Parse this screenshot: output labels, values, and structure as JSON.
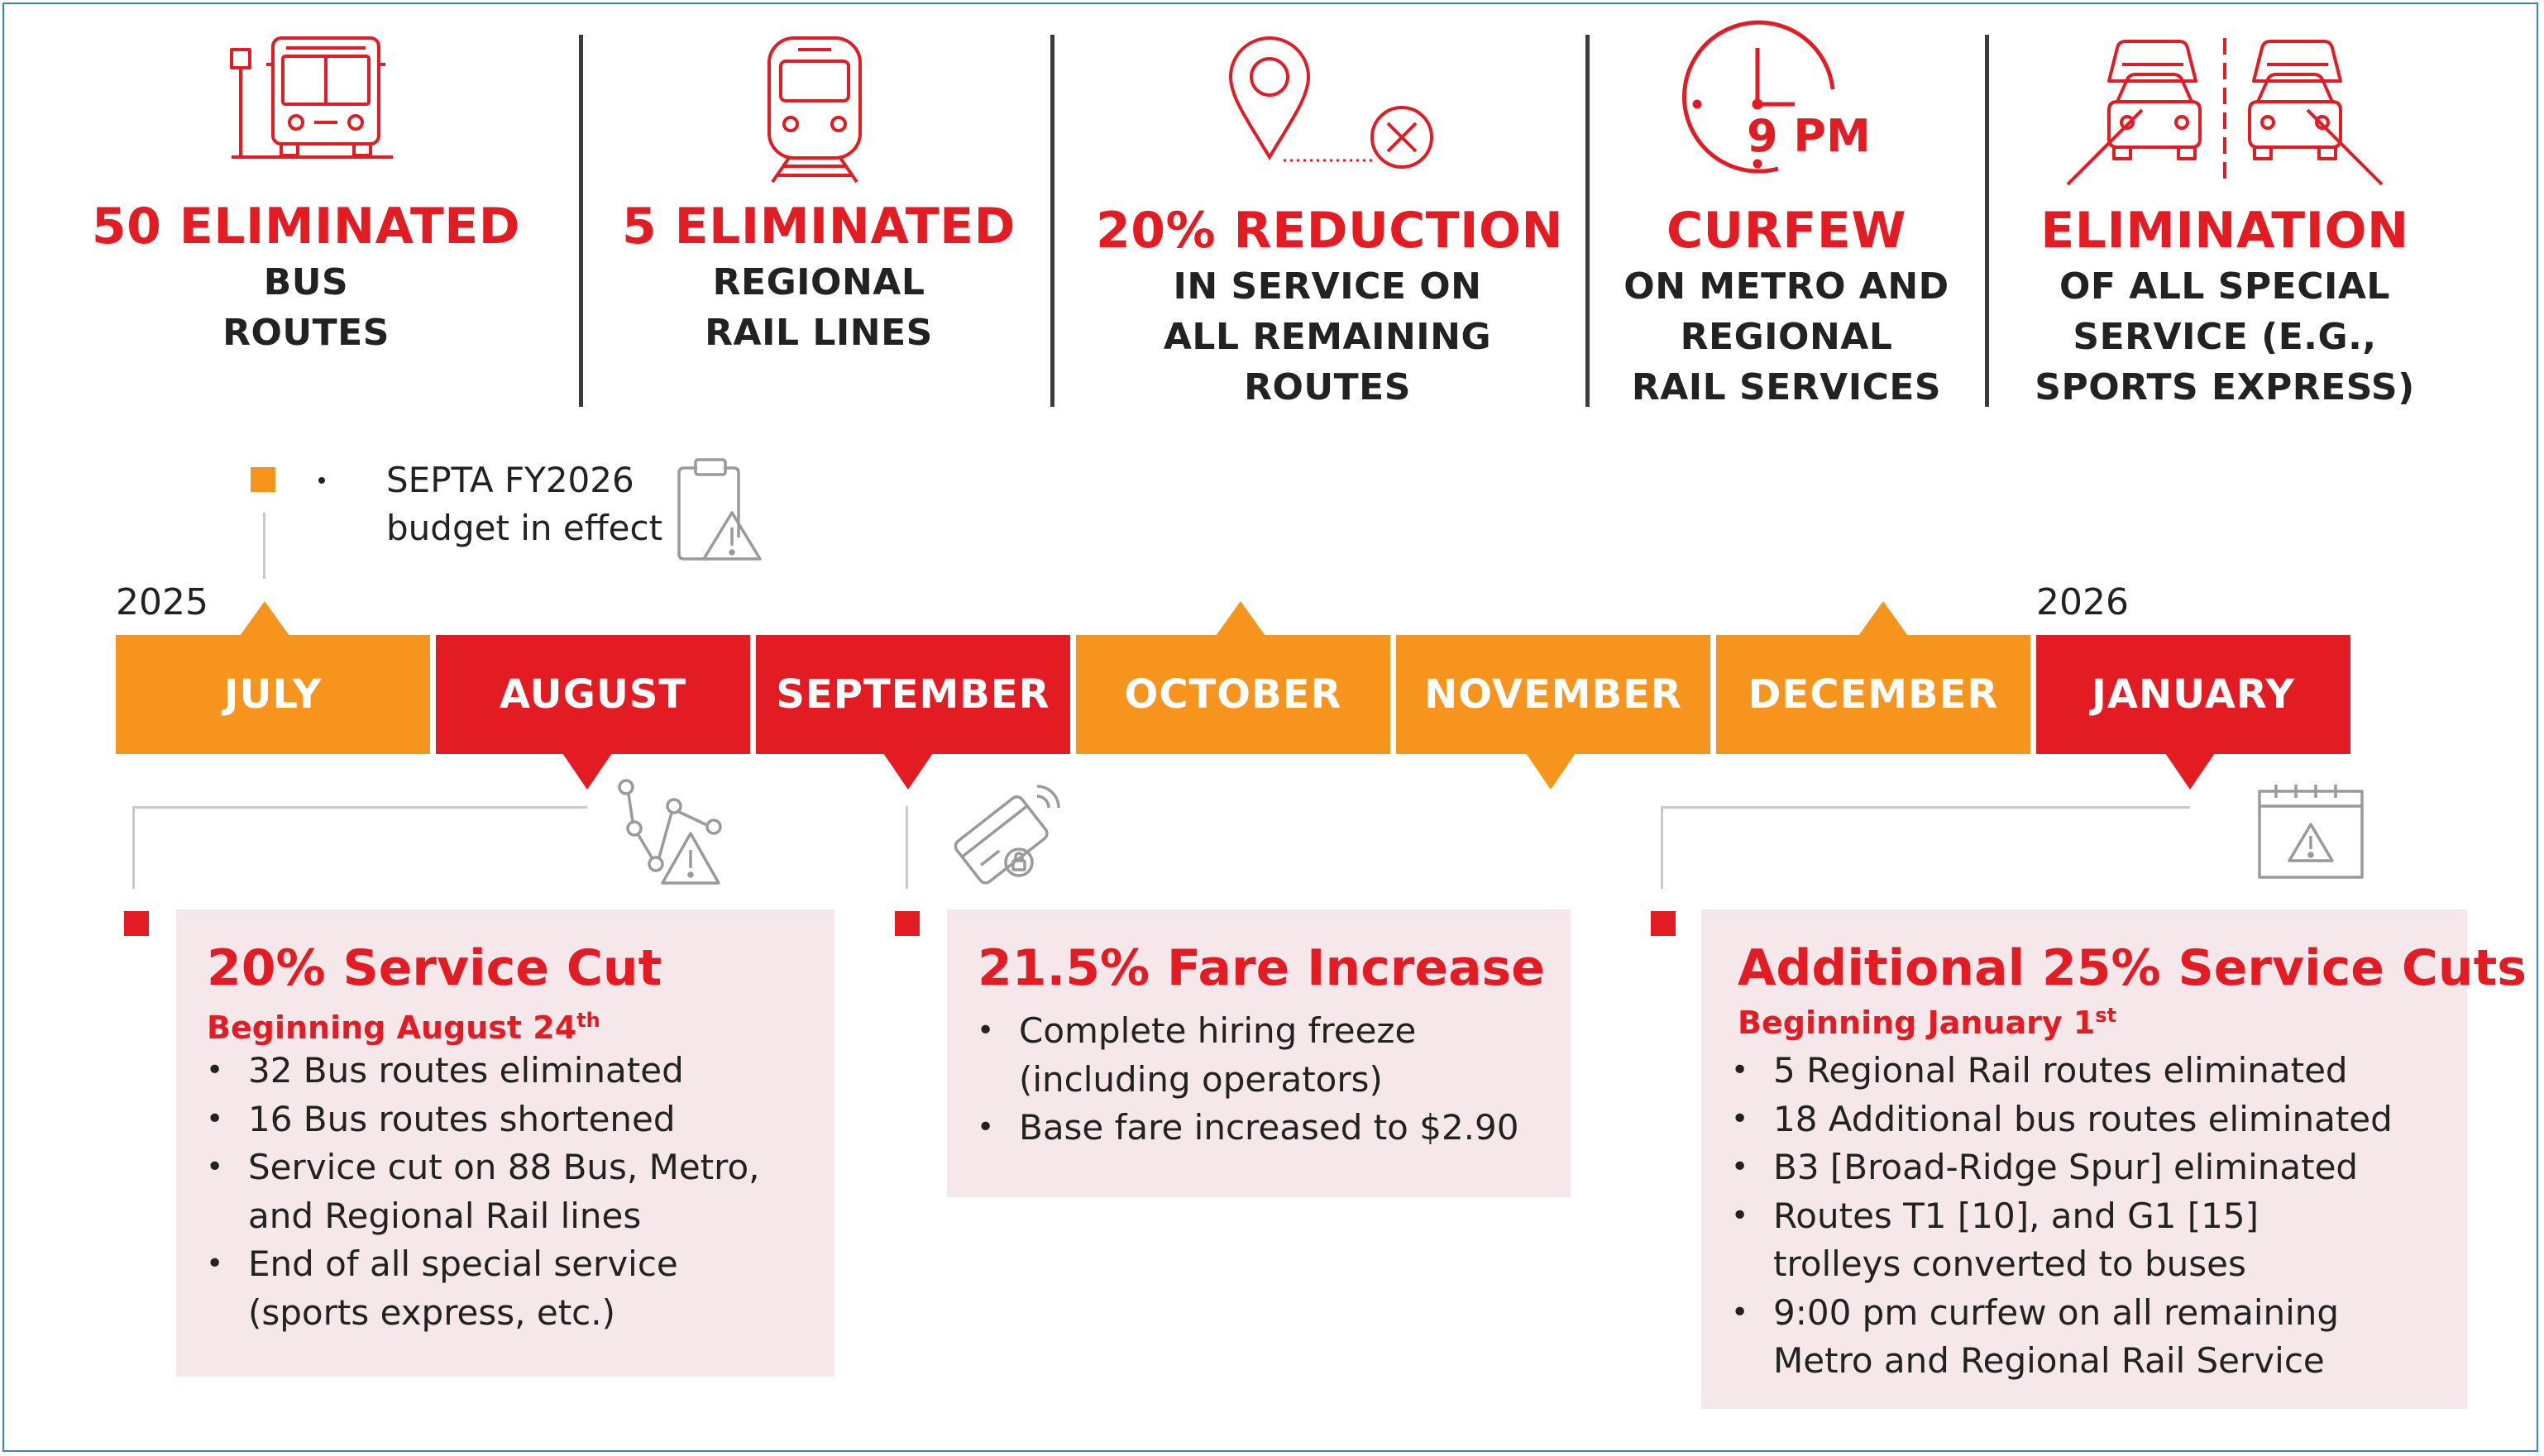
{
  "stats": [
    {
      "head": "50 ELIMINATED",
      "lines": [
        "BUS",
        "ROUTES"
      ],
      "icon": "bus-icon"
    },
    {
      "head": "5 ELIMINATED",
      "lines": [
        "REGIONAL",
        "RAIL LINES"
      ],
      "icon": "train-icon"
    },
    {
      "head": "20% REDUCTION",
      "lines": [
        "IN SERVICE ON",
        "ALL REMAINING",
        "ROUTES"
      ],
      "icon": "location-pin-cancel-icon"
    },
    {
      "head": "CURFEW",
      "lines": [
        "ON METRO AND",
        "REGIONAL",
        "RAIL SERVICES"
      ],
      "icon": "clock-icon",
      "icon_label": "9 PM"
    },
    {
      "head": "ELIMINATION",
      "lines": [
        "OF ALL SPECIAL",
        "SERVICE (E.G.,",
        "SPORTS EXPRESS)"
      ],
      "icon": "cars-road-icon"
    }
  ],
  "legend": {
    "lines": [
      "SEPTA FY2026",
      "budget in effect"
    ],
    "icon": "clipboard-warning-icon"
  },
  "timeline": {
    "year_start": "2025",
    "year_end": "2026",
    "months": [
      {
        "label": "JULY",
        "color": "#f7941d"
      },
      {
        "label": "AUGUST",
        "color": "#e31b23"
      },
      {
        "label": "SEPTEMBER",
        "color": "#e31b23"
      },
      {
        "label": "OCTOBER",
        "color": "#f7941d"
      },
      {
        "label": "NOVEMBER",
        "color": "#f7941d"
      },
      {
        "label": "DECEMBER",
        "color": "#f7941d"
      },
      {
        "label": "JANUARY",
        "color": "#e31b23"
      }
    ]
  },
  "panels": [
    {
      "title": "20% Service Cut",
      "subtitle": "Beginning August 24",
      "subtitle_sup": "th",
      "icon": "route-warning-icon",
      "items": [
        [
          "32 Bus routes eliminated"
        ],
        [
          "16 Bus routes shortened"
        ],
        [
          "Service cut on 88 Bus, Metro,",
          "and Regional Rail lines"
        ],
        [
          "End of all special service",
          "(sports express, etc.)"
        ]
      ]
    },
    {
      "title": "21.5% Fare Increase",
      "icon": "fare-card-icon",
      "items": [
        [
          "Complete hiring freeze",
          "(including operators)"
        ],
        [
          "Base fare increased to $2.90"
        ]
      ]
    },
    {
      "title": "Additional 25% Service Cuts",
      "subtitle": "Beginning January 1",
      "subtitle_sup": "st",
      "icon": "calendar-warning-icon",
      "items": [
        [
          "5 Regional Rail routes eliminated"
        ],
        [
          "18 Additional bus routes eliminated"
        ],
        [
          "B3 [Broad-Ridge Spur] eliminated"
        ],
        [
          "Routes T1 [10],  and G1 [15]",
          "trolleys converted to buses"
        ],
        [
          "9:00 pm curfew on all remaining",
          "Metro and Regional Rail Service"
        ]
      ]
    }
  ],
  "colors": {
    "red": "#e31b23",
    "orange": "#f7941d",
    "panel_bg": "#f6e7ea",
    "frame": "#3f7fd6"
  }
}
